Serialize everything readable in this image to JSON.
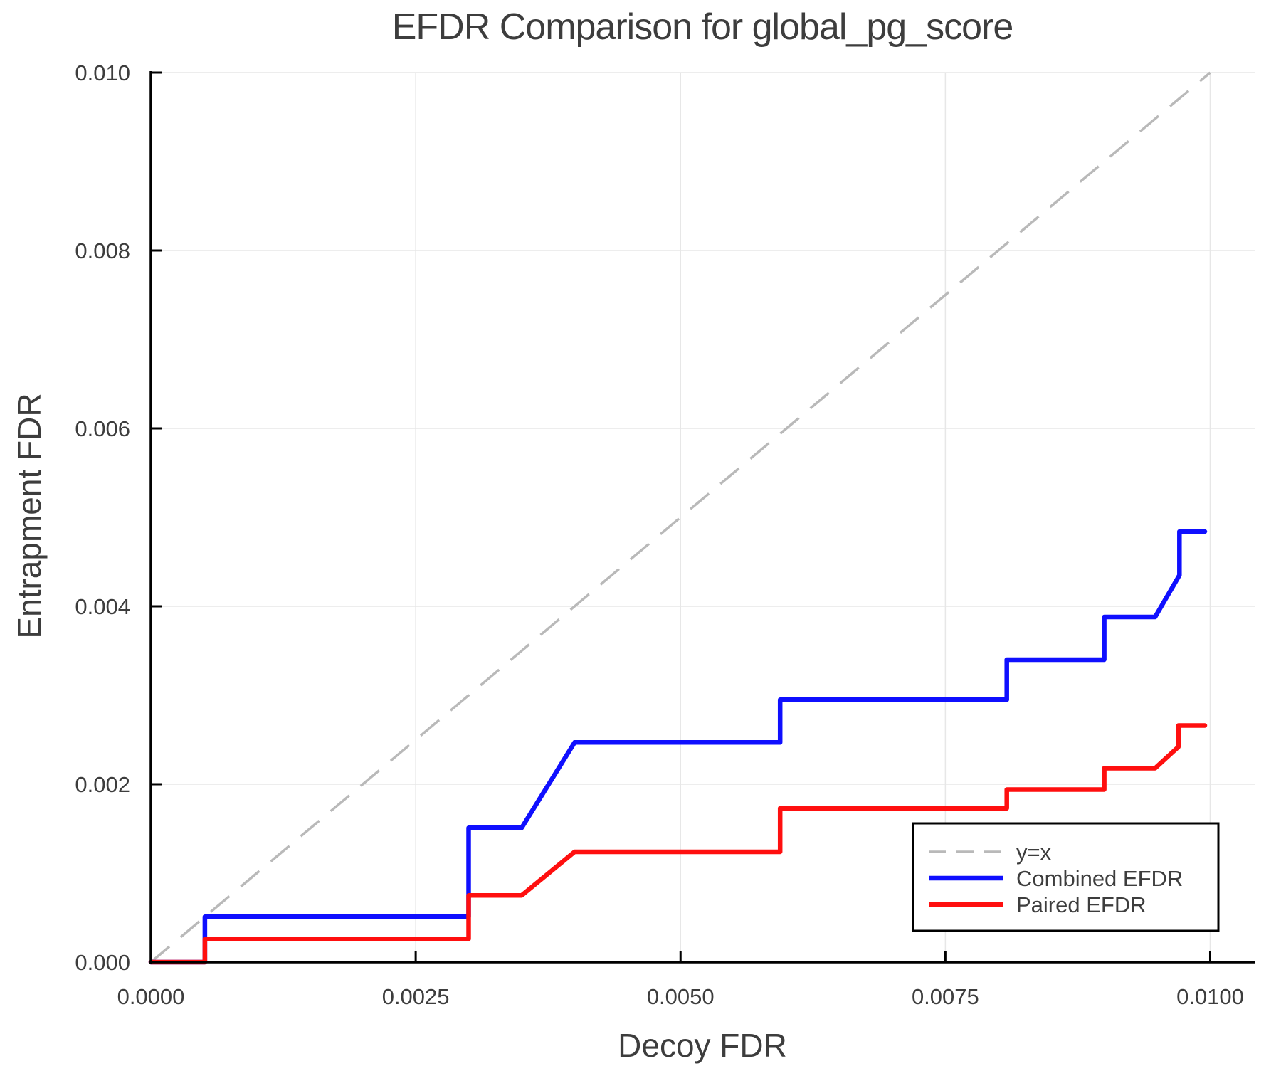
{
  "figure": {
    "title": "EFDR Comparison for global_pg_score",
    "xlabel": "Decoy FDR",
    "ylabel": "Entrapment FDR"
  },
  "axis": {
    "x_ticks": [
      {
        "v": 0.0,
        "label": "0.0000"
      },
      {
        "v": 0.0025,
        "label": "0.0025"
      },
      {
        "v": 0.005,
        "label": "0.0050"
      },
      {
        "v": 0.0075,
        "label": "0.0075"
      },
      {
        "v": 0.01,
        "label": "0.0100"
      }
    ],
    "y_ticks": [
      {
        "v": 0.0,
        "label": "0.000"
      },
      {
        "v": 0.002,
        "label": "0.002"
      },
      {
        "v": 0.004,
        "label": "0.004"
      },
      {
        "v": 0.006,
        "label": "0.006"
      },
      {
        "v": 0.008,
        "label": "0.008"
      },
      {
        "v": 0.01,
        "label": "0.010"
      }
    ]
  },
  "colors": {
    "background": "#ffffff",
    "text": "#3d3d3d",
    "grid": "#e7e7e7",
    "spine": "#000000",
    "reference": "#b9b9b9",
    "combined": "#0f0fff",
    "paired": "#ff0f0f"
  },
  "legend": {
    "entries": [
      {
        "label": "y=x",
        "color": "#b9b9b9",
        "dashed": true
      },
      {
        "label": "Combined EFDR",
        "color": "#0f0fff",
        "dashed": false
      },
      {
        "label": "Paired EFDR",
        "color": "#ff0f0f",
        "dashed": false
      }
    ],
    "position": "lower right"
  },
  "chart_data": {
    "type": "line",
    "title": "EFDR Comparison for global_pg_score",
    "xlabel": "Decoy FDR",
    "ylabel": "Entrapment FDR",
    "xlim": [
      0.0,
      0.01042
    ],
    "ylim": [
      0.0,
      0.01
    ],
    "grid": true,
    "legend_position": "lower right",
    "reference_line": {
      "name": "y=x",
      "style": "dashed",
      "color": "#b9b9b9",
      "points": [
        [
          0.0,
          0.0
        ],
        [
          0.01,
          0.01
        ]
      ]
    },
    "series": [
      {
        "name": "Combined EFDR",
        "color": "#0f0fff",
        "style": "step",
        "points": [
          [
            0.0,
            0.0
          ],
          [
            0.00051,
            0.0
          ],
          [
            0.00051,
            0.00051
          ],
          [
            0.003,
            0.00051
          ],
          [
            0.003,
            0.00151
          ],
          [
            0.0035,
            0.00151
          ],
          [
            0.004,
            0.00247
          ],
          [
            0.00594,
            0.00247
          ],
          [
            0.00594,
            0.00295
          ],
          [
            0.00808,
            0.00295
          ],
          [
            0.00808,
            0.0034
          ],
          [
            0.009,
            0.0034
          ],
          [
            0.009,
            0.00388
          ],
          [
            0.00948,
            0.00388
          ],
          [
            0.00971,
            0.00435
          ],
          [
            0.00971,
            0.00484
          ],
          [
            0.00995,
            0.00484
          ]
        ]
      },
      {
        "name": "Paired EFDR",
        "color": "#ff0f0f",
        "style": "step",
        "points": [
          [
            0.0,
            0.0
          ],
          [
            0.00051,
            0.0
          ],
          [
            0.00051,
            0.00026
          ],
          [
            0.003,
            0.00026
          ],
          [
            0.003,
            0.00075
          ],
          [
            0.0035,
            0.00075
          ],
          [
            0.004,
            0.00124
          ],
          [
            0.00594,
            0.00124
          ],
          [
            0.00594,
            0.00173
          ],
          [
            0.00808,
            0.00173
          ],
          [
            0.00808,
            0.00194
          ],
          [
            0.009,
            0.00194
          ],
          [
            0.009,
            0.00218
          ],
          [
            0.00948,
            0.00218
          ],
          [
            0.0097,
            0.00242
          ],
          [
            0.0097,
            0.00266
          ],
          [
            0.00995,
            0.00266
          ]
        ]
      }
    ]
  }
}
